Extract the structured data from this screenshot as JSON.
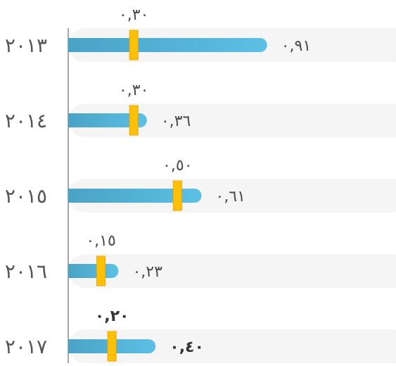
{
  "colors": {
    "bar": "#55b3d8",
    "bar_dark": "#4aa3c6",
    "marker": "#ffc107",
    "marker_edge": "#f0a500",
    "track": "#f5f5f5",
    "axis": "#888888"
  },
  "chart_data": {
    "type": "bar",
    "orientation": "horizontal",
    "xlim": [
      0,
      1.5
    ],
    "grid": false,
    "categories": [
      "٢٠١٣",
      "٢٠١٤",
      "٢٠١٥",
      "٢٠١٦",
      "٢٠١٧"
    ],
    "series": [
      {
        "values": [
          0.91,
          0.36,
          0.61,
          0.23,
          0.4
        ],
        "labels": [
          "٠,٩١",
          "٠,٣٦",
          "٠,٦١",
          "٠,٢٣",
          "٠,٤٠"
        ]
      },
      {
        "values": [
          0.3,
          0.3,
          0.5,
          0.15,
          0.2
        ],
        "labels": [
          "٠,٣٠",
          "٠,٣٠",
          "٠,٥٠",
          "٠,١٥",
          "٠,٢٠"
        ]
      }
    ]
  }
}
